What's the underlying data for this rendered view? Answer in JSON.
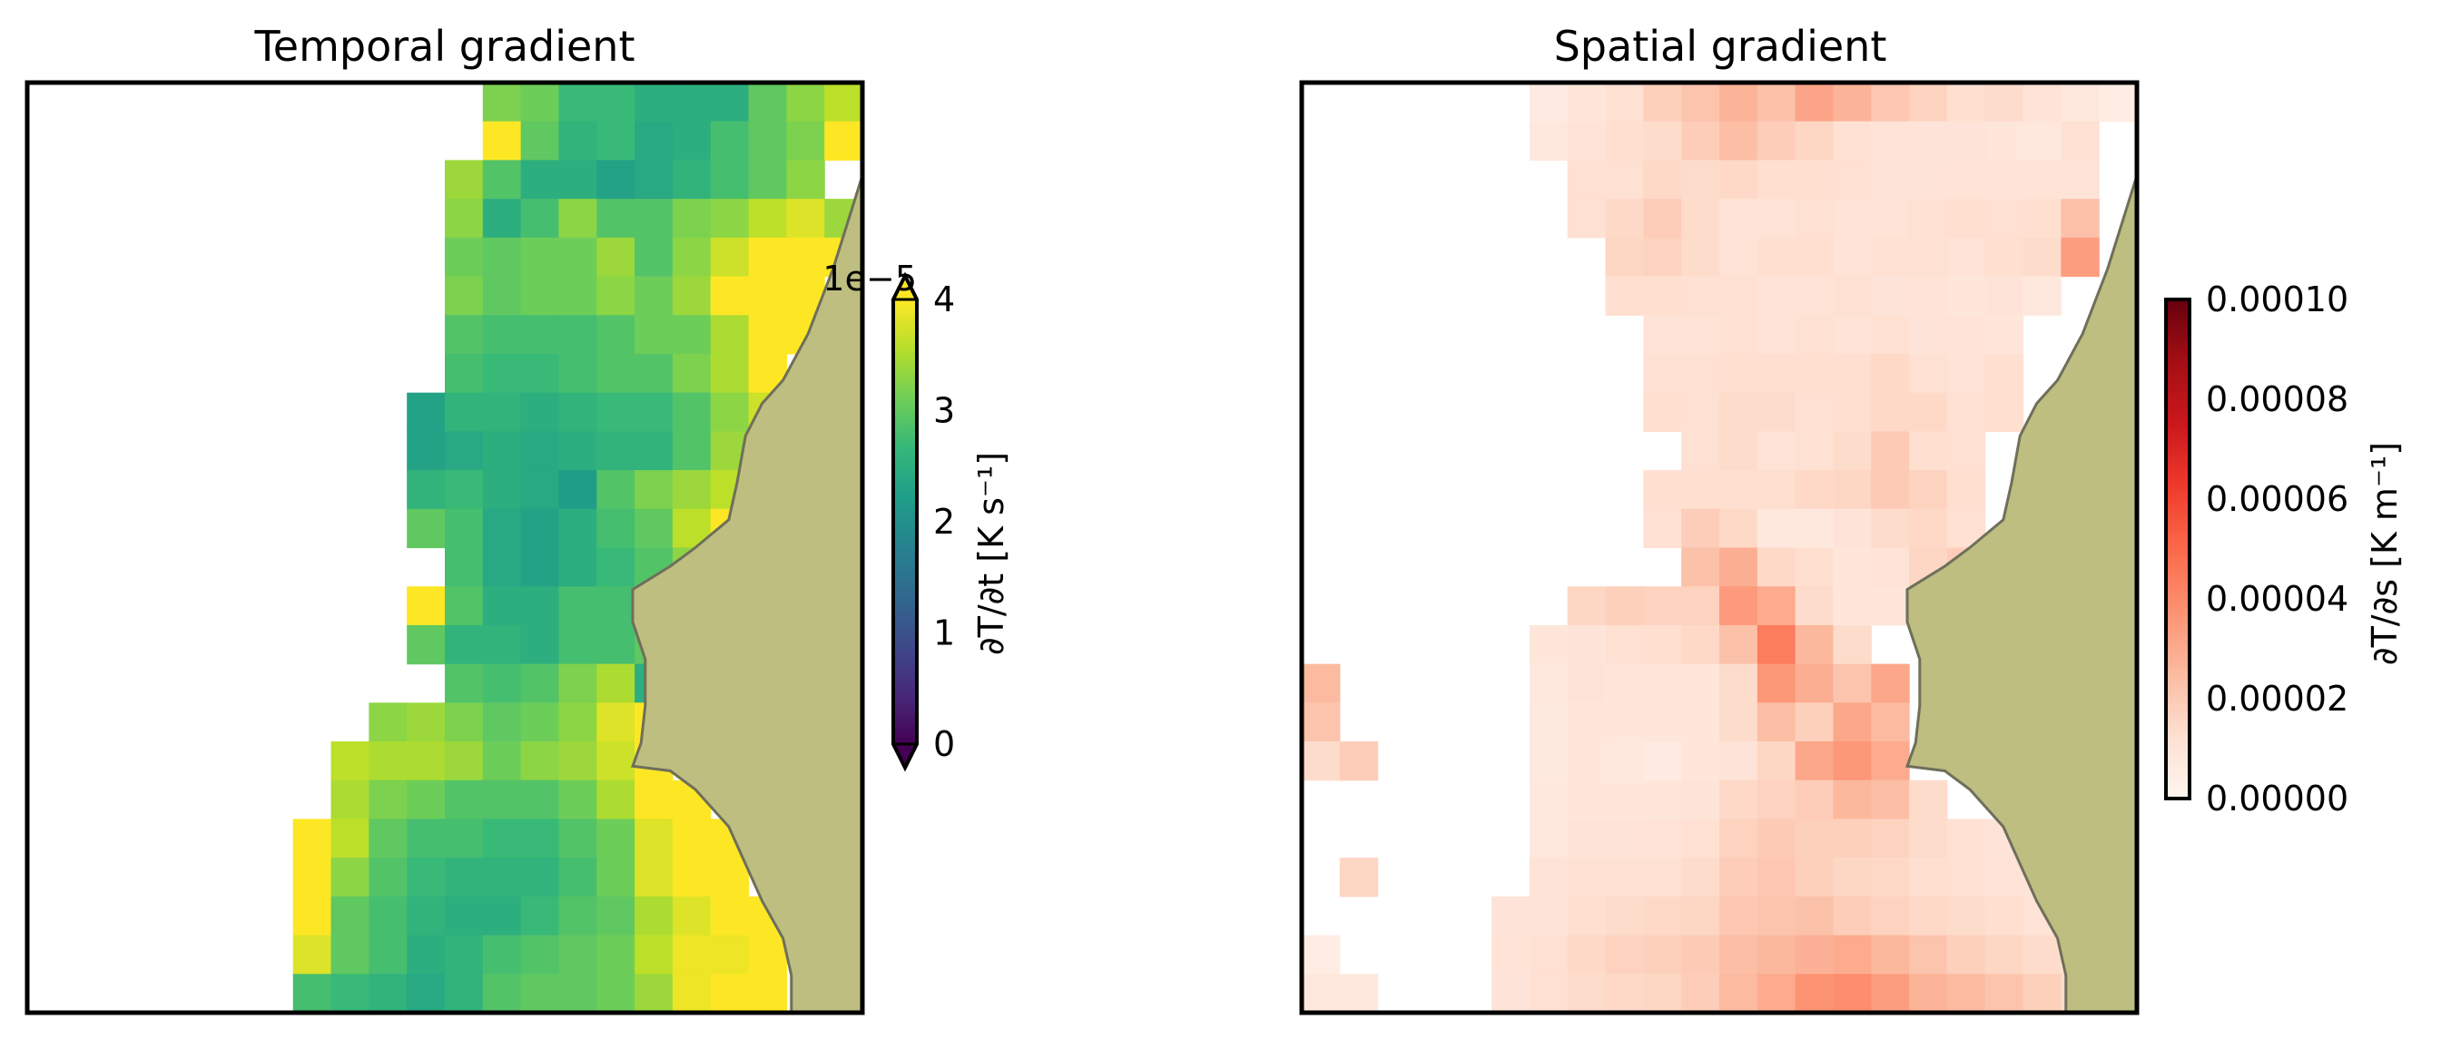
{
  "colors": {
    "land": "#bdbe80",
    "coast": "#6f6f5a",
    "frame": "#000000",
    "viridis": [
      "#440154",
      "#482878",
      "#3e4989",
      "#31688e",
      "#26828e",
      "#1f9e89",
      "#35b779",
      "#6ece58",
      "#b5de2b",
      "#fde725"
    ],
    "reds": [
      "#fff5f0",
      "#fee0d2",
      "#fcbba1",
      "#fc9272",
      "#fb6a4a",
      "#ef3b2c",
      "#cb181d",
      "#a50f15",
      "#67000d"
    ]
  },
  "chart_data": [
    {
      "type": "heatmap",
      "title": "Temporal gradient",
      "colorbar": {
        "label": "∂T/∂t [K s⁻¹]",
        "offset_text": "1e−5",
        "range": [
          0,
          4
        ],
        "ticks": [
          "0",
          "1",
          "2",
          "3",
          "4"
        ],
        "extend": "both",
        "colormap": "viridis"
      },
      "grid": {
        "rows": 24,
        "cols": 22
      },
      "values": [
        [
          null,
          null,
          null,
          null,
          null,
          null,
          null,
          null,
          null,
          null,
          null,
          null,
          3.2,
          3.1,
          2.7,
          2.7,
          2.5,
          2.5,
          2.5,
          3.0,
          3.3,
          3.6
        ],
        [
          null,
          null,
          null,
          null,
          null,
          null,
          null,
          null,
          null,
          null,
          null,
          null,
          4.1,
          3.0,
          2.6,
          2.7,
          2.4,
          2.5,
          2.8,
          3.0,
          3.2,
          4.0
        ],
        [
          null,
          null,
          null,
          null,
          null,
          null,
          null,
          null,
          null,
          null,
          null,
          3.4,
          2.9,
          2.5,
          2.5,
          2.3,
          2.4,
          2.6,
          2.8,
          3.0,
          3.3,
          null
        ],
        [
          null,
          null,
          null,
          null,
          null,
          null,
          null,
          null,
          null,
          null,
          null,
          3.3,
          2.5,
          2.8,
          3.3,
          2.9,
          2.9,
          3.2,
          3.3,
          3.6,
          3.8,
          3.4
        ],
        [
          null,
          null,
          null,
          null,
          null,
          null,
          null,
          null,
          null,
          null,
          null,
          3.1,
          3.0,
          3.1,
          3.1,
          3.4,
          2.9,
          3.3,
          3.7,
          4.2,
          4.2,
          4.0
        ],
        [
          null,
          null,
          null,
          null,
          null,
          null,
          null,
          null,
          null,
          null,
          null,
          3.2,
          3.0,
          3.1,
          3.1,
          3.3,
          3.1,
          3.4,
          4.2,
          4.2,
          4.2,
          null
        ],
        [
          null,
          null,
          null,
          null,
          null,
          null,
          null,
          null,
          null,
          null,
          null,
          2.9,
          2.8,
          2.8,
          2.8,
          2.9,
          3.1,
          3.1,
          3.5,
          4.2,
          4.2,
          null
        ],
        [
          null,
          null,
          null,
          null,
          null,
          null,
          null,
          null,
          null,
          null,
          null,
          2.8,
          2.7,
          2.7,
          2.8,
          2.9,
          2.9,
          3.2,
          3.5,
          4.1,
          null,
          null
        ],
        [
          null,
          null,
          null,
          null,
          null,
          null,
          null,
          null,
          null,
          null,
          2.3,
          2.6,
          2.6,
          2.5,
          2.6,
          2.7,
          2.7,
          2.9,
          3.3,
          3.7,
          null,
          null
        ],
        [
          null,
          null,
          null,
          null,
          null,
          null,
          null,
          null,
          null,
          null,
          2.3,
          2.4,
          2.5,
          2.4,
          2.5,
          2.6,
          2.6,
          2.9,
          3.4,
          null,
          null,
          null
        ],
        [
          null,
          null,
          null,
          null,
          null,
          null,
          null,
          null,
          null,
          null,
          2.6,
          2.7,
          2.5,
          2.4,
          2.2,
          2.9,
          3.2,
          3.4,
          3.6,
          null,
          null,
          null
        ],
        [
          null,
          null,
          null,
          null,
          null,
          null,
          null,
          null,
          null,
          null,
          3.0,
          2.8,
          2.4,
          2.3,
          2.5,
          2.8,
          3.0,
          3.6,
          4.0,
          null,
          null,
          null
        ],
        [
          null,
          null,
          null,
          null,
          null,
          null,
          null,
          null,
          null,
          null,
          null,
          2.8,
          2.4,
          2.3,
          2.5,
          2.7,
          2.9,
          3.3,
          4.1,
          null,
          null,
          null
        ],
        [
          null,
          null,
          null,
          null,
          null,
          null,
          null,
          null,
          null,
          null,
          4.1,
          2.9,
          2.5,
          2.5,
          2.8,
          2.8,
          2.9,
          3.1,
          null,
          null,
          null,
          null
        ],
        [
          null,
          null,
          null,
          null,
          null,
          null,
          null,
          null,
          null,
          null,
          3.0,
          2.6,
          2.6,
          2.5,
          2.8,
          2.8,
          3.0,
          null,
          null,
          null,
          null,
          null
        ],
        [
          null,
          null,
          null,
          null,
          null,
          null,
          null,
          null,
          null,
          null,
          null,
          2.9,
          2.8,
          2.9,
          3.2,
          3.5,
          2.5,
          null,
          null,
          null,
          null,
          null
        ],
        [
          null,
          null,
          null,
          null,
          null,
          null,
          null,
          null,
          null,
          3.3,
          3.4,
          3.2,
          3.0,
          3.1,
          3.3,
          3.8,
          4.2,
          null,
          null,
          null,
          null,
          null
        ],
        [
          null,
          null,
          null,
          null,
          null,
          null,
          null,
          null,
          3.6,
          3.5,
          3.5,
          3.4,
          3.1,
          3.3,
          3.4,
          3.7,
          4.2,
          null,
          null,
          null,
          null,
          null
        ],
        [
          null,
          null,
          null,
          null,
          null,
          null,
          null,
          null,
          3.5,
          3.2,
          3.1,
          2.9,
          2.9,
          2.9,
          3.1,
          3.5,
          4.2,
          4.2,
          null,
          null,
          null,
          null
        ],
        [
          null,
          null,
          null,
          null,
          null,
          null,
          null,
          4.2,
          3.6,
          3.0,
          2.8,
          2.8,
          2.7,
          2.7,
          2.9,
          3.1,
          3.8,
          4.2,
          4.2,
          null,
          null,
          null
        ],
        [
          null,
          null,
          null,
          null,
          null,
          null,
          null,
          4.2,
          3.3,
          2.9,
          2.7,
          2.6,
          2.6,
          2.6,
          2.8,
          3.1,
          3.8,
          4.1,
          4.2,
          null,
          null,
          null
        ],
        [
          null,
          null,
          null,
          null,
          null,
          null,
          null,
          4.1,
          3.0,
          2.8,
          2.6,
          2.5,
          2.5,
          2.7,
          2.9,
          3.0,
          3.5,
          3.8,
          4.2,
          4.2,
          null,
          null
        ],
        [
          null,
          null,
          null,
          null,
          null,
          null,
          null,
          3.8,
          3.0,
          2.8,
          2.5,
          2.6,
          2.8,
          2.9,
          3.0,
          3.1,
          3.6,
          3.9,
          3.9,
          4.2,
          null,
          null
        ],
        [
          null,
          null,
          null,
          null,
          null,
          null,
          null,
          2.8,
          2.7,
          2.6,
          2.4,
          2.6,
          2.9,
          3.0,
          3.0,
          3.1,
          3.4,
          3.9,
          4.2,
          4.2,
          null,
          null
        ]
      ]
    },
    {
      "type": "heatmap",
      "title": "Spatial gradient",
      "colorbar": {
        "label": "∂T/∂s [K m⁻¹]",
        "range": [
          0,
          0.0001
        ],
        "ticks": [
          "0.00000",
          "0.00002",
          "0.00004",
          "0.00006",
          "0.00008",
          "0.00010"
        ],
        "extend": "neither",
        "colormap": "Reds"
      },
      "grid": {
        "rows": 24,
        "cols": 22
      },
      "values": [
        [
          null,
          null,
          null,
          null,
          null,
          null,
          0.6,
          0.9,
          1.2,
          1.8,
          2.2,
          2.7,
          2.3,
          3.2,
          2.7,
          2.1,
          1.7,
          1.3,
          1.4,
          1.1,
          0.8,
          0.5
        ],
        [
          null,
          null,
          null,
          null,
          null,
          null,
          0.8,
          1.1,
          1.3,
          1.4,
          1.9,
          2.4,
          1.9,
          1.6,
          1.2,
          1.1,
          1.0,
          1.0,
          0.9,
          0.8,
          1.2,
          null
        ],
        [
          null,
          null,
          null,
          null,
          null,
          null,
          null,
          1.2,
          1.2,
          1.5,
          1.4,
          1.5,
          1.3,
          1.3,
          1.2,
          1.0,
          1.0,
          1.1,
          1.1,
          1.1,
          1.1,
          null
        ],
        [
          null,
          null,
          null,
          null,
          null,
          null,
          null,
          1.2,
          1.5,
          1.9,
          1.4,
          1.1,
          1.1,
          1.2,
          1.1,
          1.1,
          1.2,
          1.3,
          1.2,
          1.3,
          2.3,
          null
        ],
        [
          null,
          null,
          null,
          null,
          null,
          null,
          null,
          null,
          1.6,
          1.7,
          1.4,
          1.1,
          1.3,
          1.3,
          1.1,
          1.2,
          1.2,
          1.1,
          1.3,
          1.4,
          3.4,
          null
        ],
        [
          null,
          null,
          null,
          null,
          null,
          null,
          null,
          null,
          1.3,
          1.3,
          1.2,
          1.2,
          1.1,
          1.1,
          1.2,
          1.0,
          1.1,
          0.9,
          1.0,
          0.8,
          null,
          null
        ],
        [
          null,
          null,
          null,
          null,
          null,
          null,
          null,
          null,
          null,
          1.1,
          1.1,
          1.2,
          1.1,
          1.2,
          1.1,
          1.2,
          1.0,
          1.1,
          0.9,
          null,
          null,
          null
        ],
        [
          null,
          null,
          null,
          null,
          null,
          null,
          null,
          null,
          null,
          1.2,
          1.2,
          1.3,
          1.3,
          1.3,
          1.3,
          1.5,
          1.2,
          1.1,
          1.3,
          null,
          null,
          null
        ],
        [
          null,
          null,
          null,
          null,
          null,
          null,
          null,
          null,
          null,
          1.3,
          1.2,
          1.4,
          1.4,
          1.2,
          1.3,
          1.5,
          1.5,
          1.2,
          1.3,
          null,
          null,
          null
        ],
        [
          null,
          null,
          null,
          null,
          null,
          null,
          null,
          null,
          null,
          null,
          1.2,
          1.4,
          1.1,
          1.2,
          1.4,
          2.0,
          1.3,
          1.2,
          null,
          null,
          null,
          null
        ],
        [
          null,
          null,
          null,
          null,
          null,
          null,
          null,
          null,
          null,
          1.3,
          1.3,
          1.3,
          1.3,
          1.5,
          1.6,
          2.0,
          1.7,
          1.3,
          null,
          null,
          null,
          null
        ],
        [
          null,
          null,
          null,
          null,
          null,
          null,
          null,
          null,
          null,
          1.2,
          1.9,
          1.5,
          0.8,
          0.8,
          1.0,
          1.4,
          1.5,
          1.2,
          null,
          null,
          null,
          null
        ],
        [
          null,
          null,
          null,
          null,
          null,
          null,
          null,
          null,
          null,
          null,
          2.3,
          2.9,
          1.5,
          1.3,
          0.9,
          1.1,
          1.6,
          1.9,
          null,
          null,
          null,
          null
        ],
        [
          null,
          null,
          null,
          null,
          null,
          null,
          null,
          1.6,
          1.8,
          1.7,
          1.7,
          3.5,
          3.0,
          1.4,
          0.9,
          0.9,
          null,
          null,
          null,
          null,
          null,
          null
        ],
        [
          null,
          null,
          null,
          null,
          null,
          null,
          0.9,
          1.0,
          1.2,
          1.3,
          1.5,
          2.3,
          4.4,
          2.6,
          1.4,
          null,
          null,
          null,
          null,
          null,
          null,
          null
        ],
        [
          2.5,
          null,
          null,
          null,
          null,
          null,
          0.8,
          1.0,
          0.9,
          0.9,
          0.9,
          1.4,
          3.6,
          2.9,
          2.2,
          3.1,
          null,
          null,
          null,
          null,
          null,
          null
        ],
        [
          2.2,
          null,
          null,
          null,
          null,
          null,
          0.7,
          0.9,
          0.9,
          0.9,
          0.9,
          1.4,
          2.4,
          1.8,
          3.1,
          2.5,
          null,
          null,
          null,
          null,
          null,
          null
        ],
        [
          1.4,
          1.9,
          null,
          null,
          null,
          null,
          0.7,
          0.9,
          0.8,
          0.6,
          0.9,
          1.0,
          1.6,
          3.1,
          3.6,
          3.0,
          null,
          null,
          null,
          null,
          null,
          null
        ],
        [
          null,
          null,
          null,
          null,
          null,
          null,
          0.8,
          0.9,
          0.9,
          0.9,
          1.0,
          1.5,
          1.7,
          1.9,
          2.6,
          2.4,
          1.4,
          null,
          null,
          null,
          null,
          null
        ],
        [
          null,
          null,
          null,
          null,
          null,
          null,
          0.8,
          1.0,
          1.0,
          1.1,
          1.2,
          1.7,
          2.0,
          1.8,
          1.8,
          1.7,
          1.4,
          1.2,
          1.0,
          null,
          null,
          null
        ],
        [
          null,
          1.6,
          null,
          null,
          null,
          null,
          1.0,
          1.2,
          1.2,
          1.2,
          1.4,
          1.9,
          2.1,
          1.8,
          1.6,
          1.5,
          1.3,
          1.2,
          1.1,
          1.0,
          null,
          null
        ],
        [
          null,
          null,
          null,
          null,
          null,
          1.0,
          1.0,
          1.3,
          1.4,
          1.5,
          1.6,
          2.1,
          2.2,
          2.3,
          1.9,
          1.7,
          1.5,
          1.4,
          1.3,
          1.1,
          0.9,
          null
        ],
        [
          0.5,
          null,
          null,
          null,
          null,
          1.1,
          1.2,
          1.5,
          1.7,
          1.8,
          2.0,
          2.4,
          2.6,
          2.8,
          3.0,
          2.6,
          2.2,
          1.8,
          1.6,
          1.4,
          1.1,
          null
        ],
        [
          0.8,
          0.8,
          null,
          null,
          null,
          1.0,
          1.2,
          1.4,
          1.5,
          1.6,
          1.9,
          2.5,
          3.0,
          3.7,
          3.9,
          3.4,
          2.7,
          2.5,
          2.2,
          1.8,
          1.4,
          null
        ]
      ]
    }
  ]
}
